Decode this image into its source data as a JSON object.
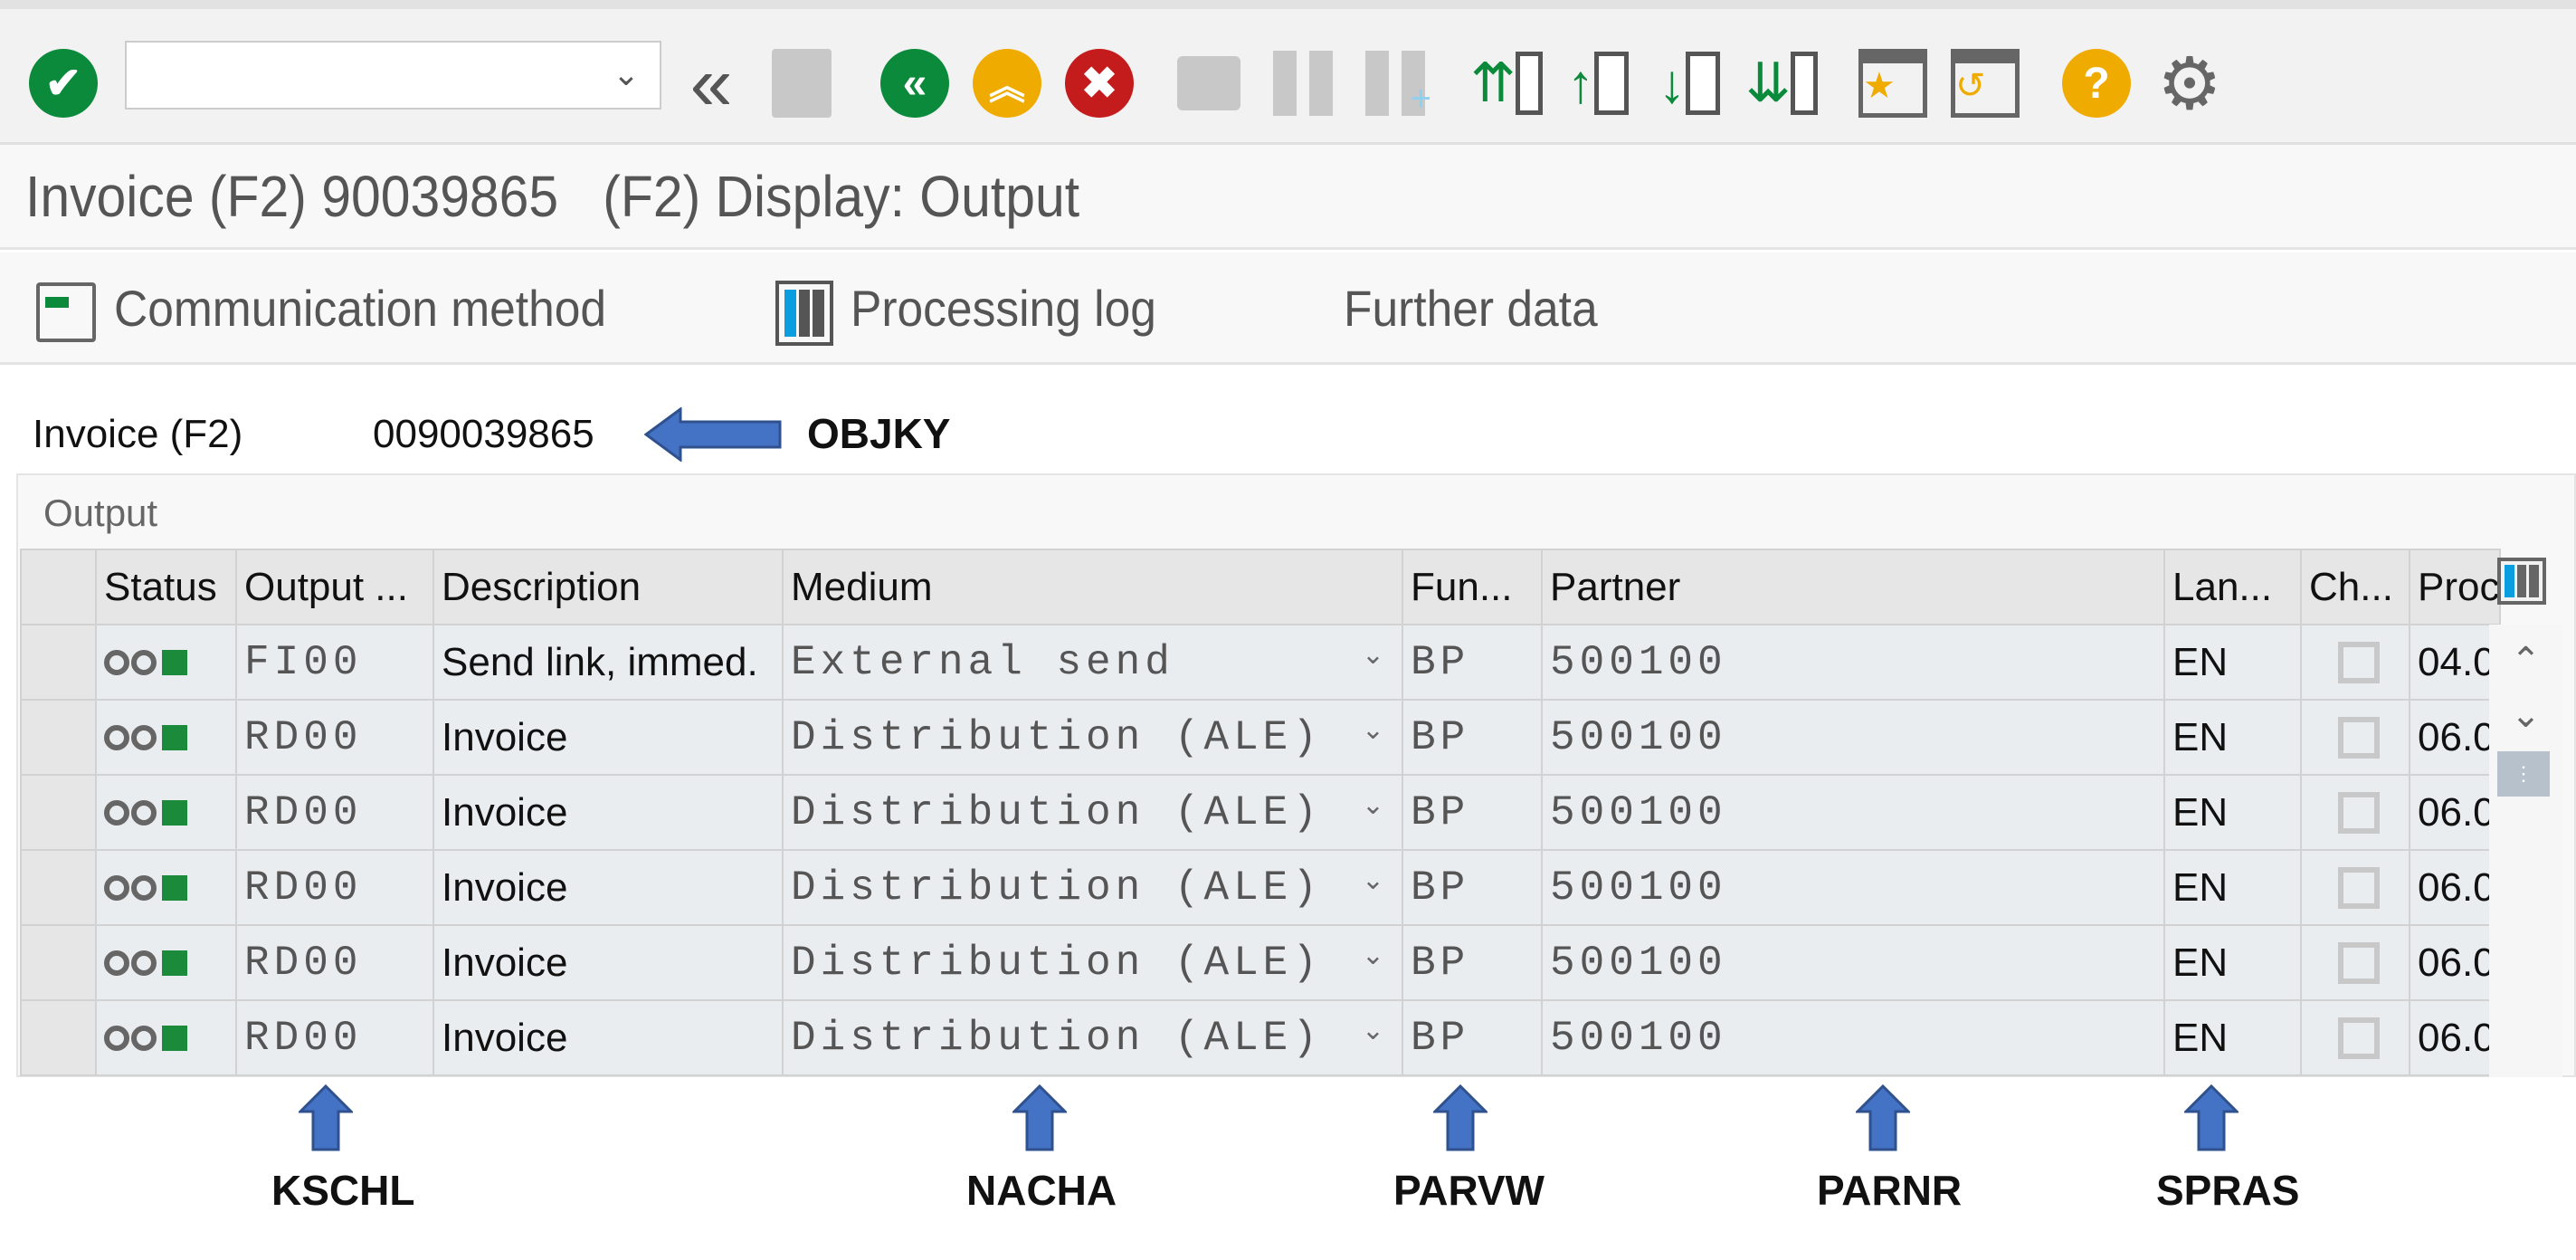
{
  "toolbar": {
    "command_field": {
      "value": "",
      "placeholder": ""
    },
    "icons": [
      "enter-check-icon",
      "back-double-chevron-icon",
      "save-icon",
      "back-icon",
      "exit-icon",
      "cancel-icon",
      "print-icon",
      "find-icon",
      "find-next-icon",
      "first-page-icon",
      "previous-page-icon",
      "next-page-icon",
      "last-page-icon",
      "new-session-star-icon",
      "shortcut-icon",
      "help-icon",
      "settings-gear-icon"
    ],
    "colors": {
      "green": "#0a8a3a",
      "yellow": "#f0ab00",
      "red": "#c41c1c",
      "gray": "#666666"
    }
  },
  "title": "Invoice (F2) 90039865   (F2) Display: Output",
  "menu": {
    "communication_method": "Communication method",
    "processing_log": "Processing log",
    "further_data": "Further data"
  },
  "document": {
    "label": "Invoice (F2)",
    "value": "0090039865",
    "annotation": "OBJKY"
  },
  "output": {
    "group_title": "Output",
    "columns": [
      "Status",
      "Output ...",
      "Description",
      "Medium",
      "Fun...",
      "Partner",
      "Lan...",
      "Ch...",
      "Proc"
    ],
    "rows": [
      {
        "output_type": "FI00",
        "description": "Send link, immed.",
        "medium": "External send",
        "function": "BP",
        "partner": "500100",
        "language": "EN",
        "changed": false,
        "processing": "04.0"
      },
      {
        "output_type": "RD00",
        "description": "Invoice",
        "medium": "Distribution (ALE)",
        "function": "BP",
        "partner": "500100",
        "language": "EN",
        "changed": false,
        "processing": "06.0"
      },
      {
        "output_type": "RD00",
        "description": "Invoice",
        "medium": "Distribution (ALE)",
        "function": "BP",
        "partner": "500100",
        "language": "EN",
        "changed": false,
        "processing": "06.0"
      },
      {
        "output_type": "RD00",
        "description": "Invoice",
        "medium": "Distribution (ALE)",
        "function": "BP",
        "partner": "500100",
        "language": "EN",
        "changed": false,
        "processing": "06.0"
      },
      {
        "output_type": "RD00",
        "description": "Invoice",
        "medium": "Distribution (ALE)",
        "function": "BP",
        "partner": "500100",
        "language": "EN",
        "changed": false,
        "processing": "06.0"
      },
      {
        "output_type": "RD00",
        "description": "Invoice",
        "medium": "Distribution (ALE)",
        "function": "BP",
        "partner": "500100",
        "language": "EN",
        "changed": false,
        "processing": "06.0"
      }
    ]
  },
  "annotations": {
    "kschl": "KSCHL",
    "nacha": "NACHA",
    "parvw": "PARVW",
    "parnr": "PARNR",
    "spras": "SPRAS",
    "arrow_color": "#4472C4"
  }
}
